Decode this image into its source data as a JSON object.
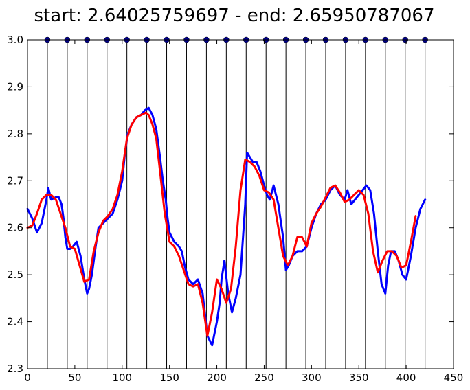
{
  "chart_data": {
    "type": "line",
    "title": "start: 2.64025759697 -  end: 2.65950787067",
    "xlabel": "",
    "ylabel": "",
    "xlim": [
      0,
      450
    ],
    "ylim": [
      2.3,
      3.0
    ],
    "x_ticks": [
      0,
      50,
      100,
      150,
      200,
      250,
      300,
      350,
      400,
      450
    ],
    "y_ticks": [
      2.3,
      2.4,
      2.5,
      2.6,
      2.7,
      2.8,
      2.9,
      3.0
    ],
    "x_tick_labels": [
      "0",
      "50",
      "100",
      "150",
      "200",
      "250",
      "300",
      "350",
      "400",
      "450"
    ],
    "y_tick_labels": [
      "2.3",
      "2.4",
      "2.5",
      "2.6",
      "2.7",
      "2.8",
      "2.9",
      "3.0"
    ],
    "grid": false,
    "vlines": [
      21,
      42,
      63,
      84,
      105,
      126,
      147,
      168,
      189,
      210,
      231,
      252,
      273,
      294,
      315,
      336,
      357,
      378,
      399,
      420
    ],
    "markers": {
      "color": "#00008b",
      "y": 3.0,
      "x": [
        21,
        42,
        63,
        84,
        105,
        126,
        147,
        168,
        189,
        210,
        231,
        252,
        273,
        294,
        315,
        336,
        357,
        378,
        399,
        420
      ]
    },
    "series": [
      {
        "color": "#0000ff",
        "x": [
          0,
          5,
          10,
          15,
          20,
          22,
          25,
          30,
          33,
          36,
          38,
          40,
          42,
          45,
          48,
          52,
          56,
          60,
          63,
          65,
          68,
          72,
          75,
          80,
          85,
          90,
          95,
          100,
          103,
          106,
          110,
          115,
          120,
          124,
          128,
          132,
          136,
          140,
          143,
          146,
          148,
          150,
          155,
          160,
          163,
          166,
          170,
          175,
          180,
          185,
          190,
          195,
          200,
          203,
          205,
          208,
          212,
          216,
          220,
          225,
          230,
          232,
          235,
          238,
          242,
          246,
          250,
          253,
          256,
          260,
          265,
          270,
          273,
          276,
          280,
          285,
          290,
          295,
          300,
          305,
          310,
          315,
          320,
          325,
          330,
          335,
          338,
          342,
          346,
          350,
          354,
          358,
          362,
          366,
          370,
          374,
          378,
          381,
          384,
          388,
          392,
          396,
          400,
          405,
          410,
          415,
          420
        ],
        "y": [
          2.64,
          2.62,
          2.59,
          2.61,
          2.66,
          2.685,
          2.66,
          2.665,
          2.665,
          2.65,
          2.62,
          2.58,
          2.555,
          2.555,
          2.56,
          2.57,
          2.54,
          2.49,
          2.46,
          2.47,
          2.5,
          2.56,
          2.6,
          2.61,
          2.62,
          2.63,
          2.66,
          2.7,
          2.76,
          2.8,
          2.82,
          2.835,
          2.84,
          2.85,
          2.855,
          2.84,
          2.81,
          2.75,
          2.7,
          2.66,
          2.62,
          2.59,
          2.57,
          2.56,
          2.55,
          2.52,
          2.49,
          2.48,
          2.49,
          2.46,
          2.37,
          2.35,
          2.4,
          2.44,
          2.49,
          2.53,
          2.46,
          2.42,
          2.45,
          2.5,
          2.65,
          2.76,
          2.75,
          2.74,
          2.74,
          2.72,
          2.69,
          2.67,
          2.66,
          2.69,
          2.65,
          2.58,
          2.51,
          2.52,
          2.54,
          2.55,
          2.55,
          2.56,
          2.6,
          2.63,
          2.65,
          2.66,
          2.68,
          2.69,
          2.67,
          2.66,
          2.68,
          2.65,
          2.66,
          2.67,
          2.68,
          2.69,
          2.68,
          2.63,
          2.55,
          2.48,
          2.46,
          2.52,
          2.55,
          2.55,
          2.53,
          2.5,
          2.49,
          2.54,
          2.6,
          2.64,
          2.66
        ]
      },
      {
        "color": "#ff0000",
        "x": [
          0,
          5,
          10,
          15,
          20,
          25,
          30,
          35,
          40,
          45,
          50,
          55,
          60,
          65,
          70,
          75,
          80,
          85,
          90,
          95,
          100,
          105,
          110,
          115,
          120,
          125,
          128,
          132,
          136,
          140,
          145,
          150,
          155,
          160,
          165,
          170,
          175,
          180,
          185,
          190,
          195,
          200,
          205,
          210,
          215,
          220,
          225,
          230,
          235,
          240,
          245,
          250,
          255,
          260,
          265,
          270,
          275,
          280,
          285,
          290,
          295,
          300,
          305,
          310,
          315,
          320,
          325,
          330,
          335,
          340,
          345,
          350,
          355,
          360,
          365,
          370,
          375,
          380,
          385,
          390,
          395,
          400,
          405,
          410
        ],
        "y": [
          2.6,
          2.605,
          2.63,
          2.66,
          2.67,
          2.67,
          2.66,
          2.63,
          2.6,
          2.56,
          2.555,
          2.52,
          2.485,
          2.49,
          2.55,
          2.59,
          2.615,
          2.625,
          2.64,
          2.67,
          2.72,
          2.79,
          2.82,
          2.835,
          2.84,
          2.845,
          2.84,
          2.82,
          2.79,
          2.72,
          2.63,
          2.57,
          2.56,
          2.54,
          2.51,
          2.48,
          2.475,
          2.48,
          2.44,
          2.37,
          2.42,
          2.49,
          2.47,
          2.44,
          2.47,
          2.56,
          2.68,
          2.745,
          2.74,
          2.73,
          2.71,
          2.68,
          2.675,
          2.66,
          2.6,
          2.54,
          2.52,
          2.54,
          2.58,
          2.58,
          2.56,
          2.61,
          2.63,
          2.645,
          2.665,
          2.685,
          2.69,
          2.675,
          2.655,
          2.66,
          2.67,
          2.68,
          2.67,
          2.63,
          2.55,
          2.505,
          2.53,
          2.55,
          2.55,
          2.54,
          2.515,
          2.52,
          2.57,
          2.625
        ]
      }
    ]
  }
}
